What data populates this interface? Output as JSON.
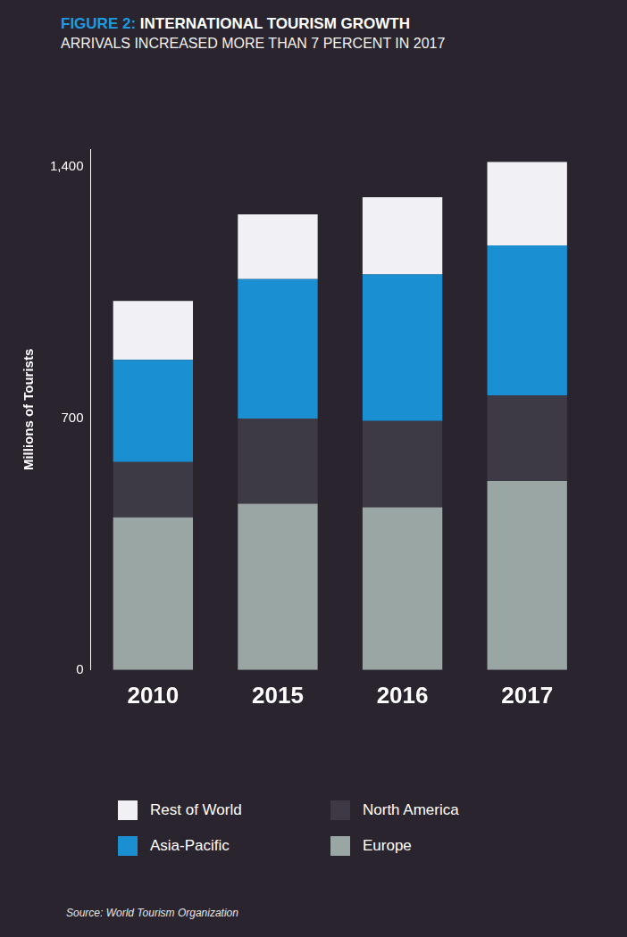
{
  "chart_data": {
    "type": "bar",
    "title": "FIGURE 2: INTERNATIONAL TOURISM GROWTH",
    "subtitle": "ARRIVALS INCREASED MORE THAN 7 PERCENT IN 2017",
    "y_label": "Millions of Tourists",
    "source": "Source: World Tourism Organization",
    "categories": [
      "2010",
      "2015",
      "2016",
      "2017"
    ],
    "series": [
      {
        "name": "Europe",
        "color": "#9aa6a4",
        "values": [
          425,
          463,
          453,
          526
        ]
      },
      {
        "name": "North America",
        "color": "#3e3a45",
        "values": [
          154,
          237,
          240,
          238
        ]
      },
      {
        "name": "Asia-Pacific",
        "color": "#1a8fd2",
        "values": [
          284,
          388,
          408,
          418
        ]
      },
      {
        "name": "Rest of World",
        "color": "#f1f0f4",
        "values": [
          164,
          180,
          215,
          232
        ]
      }
    ],
    "ylim": [
      0,
      1450
    ],
    "yticks": [
      0,
      700,
      {
        "value": 1400,
        "label": "1,400"
      }
    ],
    "stacked": true,
    "grid": false,
    "legend": "bottom"
  }
}
